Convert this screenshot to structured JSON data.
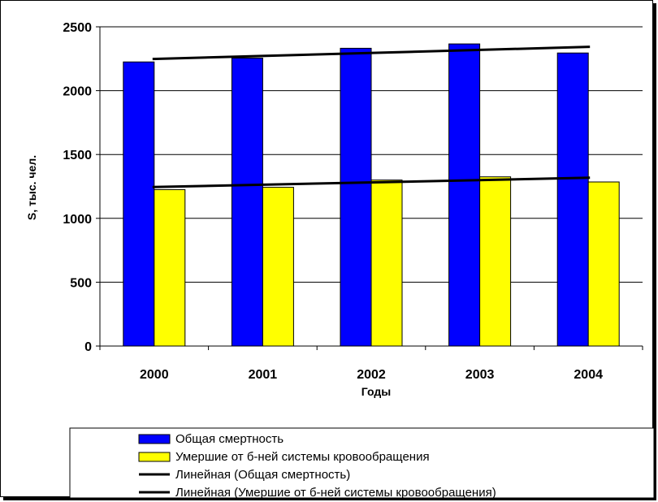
{
  "chart_data": {
    "type": "bar",
    "title": "",
    "xlabel": "Годы",
    "ylabel": "S, тыс. чел.",
    "ylim": [
      0,
      2500
    ],
    "yticks": [
      0,
      500,
      1000,
      1500,
      2000,
      2500
    ],
    "grid": true,
    "legend_position": "bottom",
    "categories": [
      "2000",
      "2001",
      "2002",
      "2003",
      "2004"
    ],
    "series": [
      {
        "name": "Общая смертность",
        "color": "#0000ff",
        "values": [
          2225,
          2255,
          2332,
          2366,
          2295
        ]
      },
      {
        "name": "Умершие от б-ней системы кровообращения",
        "color": "#ffff00",
        "values": [
          1225,
          1243,
          1300,
          1325,
          1285
        ]
      }
    ],
    "trendlines": [
      {
        "name": "Линейная (Общая  смертность)",
        "color": "#000000",
        "start": 2248,
        "end": 2343
      },
      {
        "name": "Линейная (Умершие от б-ней системы кровообращения)",
        "color": "#000000",
        "start": 1245,
        "end": 1318
      }
    ]
  }
}
